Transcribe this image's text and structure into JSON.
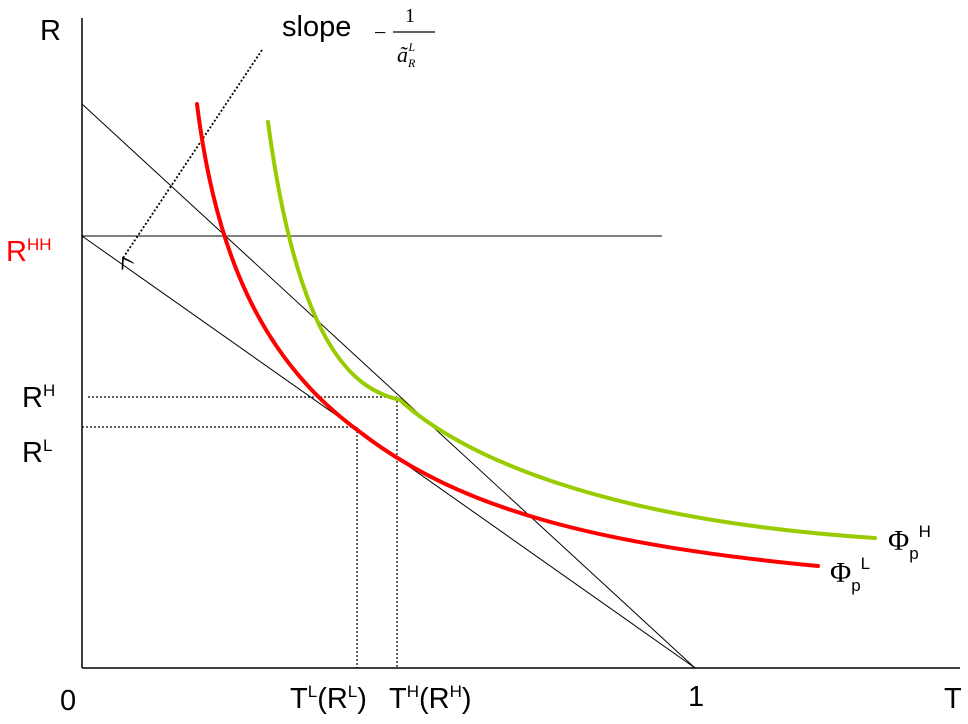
{
  "axes": {
    "y_label": "R",
    "x_label": "T",
    "origin_label": "0",
    "x_one_label": "1"
  },
  "y_ticks": {
    "rhh": {
      "base": "R",
      "sup": "HH"
    },
    "rh": {
      "base": "R",
      "sup": "H"
    },
    "rl": {
      "base": "R",
      "sup": "L"
    }
  },
  "x_ticks": {
    "tl": {
      "t": "T",
      "t_sup": "L",
      "open": "(R",
      "r_sup": "L",
      "close": ")"
    },
    "th": {
      "t": "T",
      "t_sup": "H",
      "open": "(R",
      "r_sup": "H",
      "close": ")"
    }
  },
  "slope_annotation": {
    "word": "slope",
    "minus": "−",
    "numerator": "1",
    "denominator": "ã",
    "den_sub": "R",
    "den_sup": "L"
  },
  "curves": {
    "phi_h": {
      "phi": "Φ",
      "sub": "p",
      "sup": "H",
      "color": "#99cc00"
    },
    "phi_l": {
      "phi": "Φ",
      "sub": "p",
      "sup": "L",
      "color": "#ff0000"
    }
  },
  "colors": {
    "axis": "#000000",
    "rhh_label": "#ff0000"
  }
}
